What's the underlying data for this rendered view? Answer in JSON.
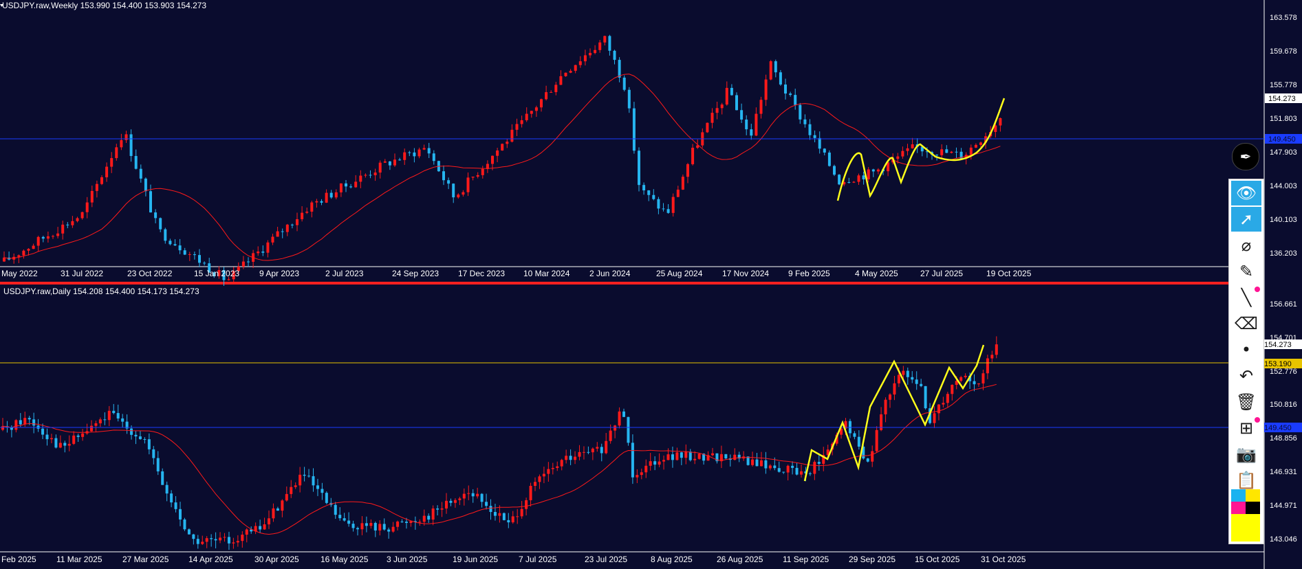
{
  "colors": {
    "background": "#0a0c2e",
    "bull": "#ff1a1a",
    "bear": "#26b5f0",
    "ma": "#ff1a1a",
    "support_blue": "#1a3cff",
    "resistance_gold": "#e8c400",
    "pattern": "#ffff1a",
    "divider": "#ff2020"
  },
  "weekly": {
    "header": "USDJPY.raw,Weekly  153.990 154.400 153.903 154.273",
    "price_labels": [
      "163.578",
      "159.678",
      "155.778",
      "151.803",
      "147.903",
      "144.003",
      "140.103",
      "136.203"
    ],
    "current_price": "154.273",
    "h_line_label": "149.450",
    "date_labels": [
      "May 2022",
      "31 Jul 2022",
      "23 Oct 2022",
      "15 Jan 2023",
      "9 Apr 2023",
      "2 Jul 2023",
      "24 Sep 2023",
      "17 Dec 2023",
      "10 Mar 2024",
      "2 Jun 2024",
      "25 Aug 2024",
      "17 Nov 2024",
      "9 Feb 2025",
      "4 May 2025",
      "27 Jul 2025",
      "19 Oct 2025"
    ]
  },
  "daily": {
    "header": "USDJPY.raw,Daily  154.208 154.400 154.173 154.273",
    "price_labels": [
      "156.661",
      "154.701",
      "152.776",
      "150.816",
      "148.856",
      "146.931",
      "144.971",
      "143.046"
    ],
    "current_price": "154.273",
    "gold_line_label": "153.190",
    "blue_line_label": "149.450",
    "date_labels": [
      "Feb 2025",
      "11 Mar 2025",
      "27 Mar 2025",
      "14 Apr 2025",
      "30 Apr 2025",
      "16 May 2025",
      "3 Jun 2025",
      "19 Jun 2025",
      "7 Jul 2025",
      "23 Jul 2025",
      "8 Aug 2025",
      "26 Aug 2025",
      "11 Sep 2025",
      "29 Sep 2025",
      "15 Oct 2025",
      "31 Oct 2025"
    ]
  },
  "toolbar": {
    "tools": [
      {
        "icon": "eye-icon",
        "glyph": "👁",
        "active": true
      },
      {
        "icon": "cursor-icon",
        "glyph": "➚",
        "active": true
      },
      {
        "icon": "crosshair-pen-icon",
        "glyph": "⌀",
        "active": false
      },
      {
        "icon": "highlighter-icon",
        "glyph": "✎",
        "active": false
      },
      {
        "icon": "line-tool-icon",
        "glyph": "╲",
        "active": false,
        "dot": true
      },
      {
        "icon": "eraser-icon",
        "glyph": "⌫",
        "active": false
      },
      {
        "icon": "dot-size-icon",
        "glyph": "•",
        "active": false
      },
      {
        "icon": "undo-icon",
        "glyph": "↶",
        "active": false
      },
      {
        "icon": "trash-icon",
        "glyph": "🗑",
        "active": false
      },
      {
        "icon": "easel-icon",
        "glyph": "⊞",
        "active": false,
        "dot": true
      },
      {
        "icon": "camera-icon",
        "glyph": "📷",
        "active": false
      },
      {
        "icon": "clipboard-icon",
        "glyph": "📋",
        "active": false
      }
    ],
    "swatches": [
      "#19b3f0",
      "#ffe600",
      "#ff1493",
      "#000000",
      "#ffff00",
      "#ffff00"
    ]
  }
}
